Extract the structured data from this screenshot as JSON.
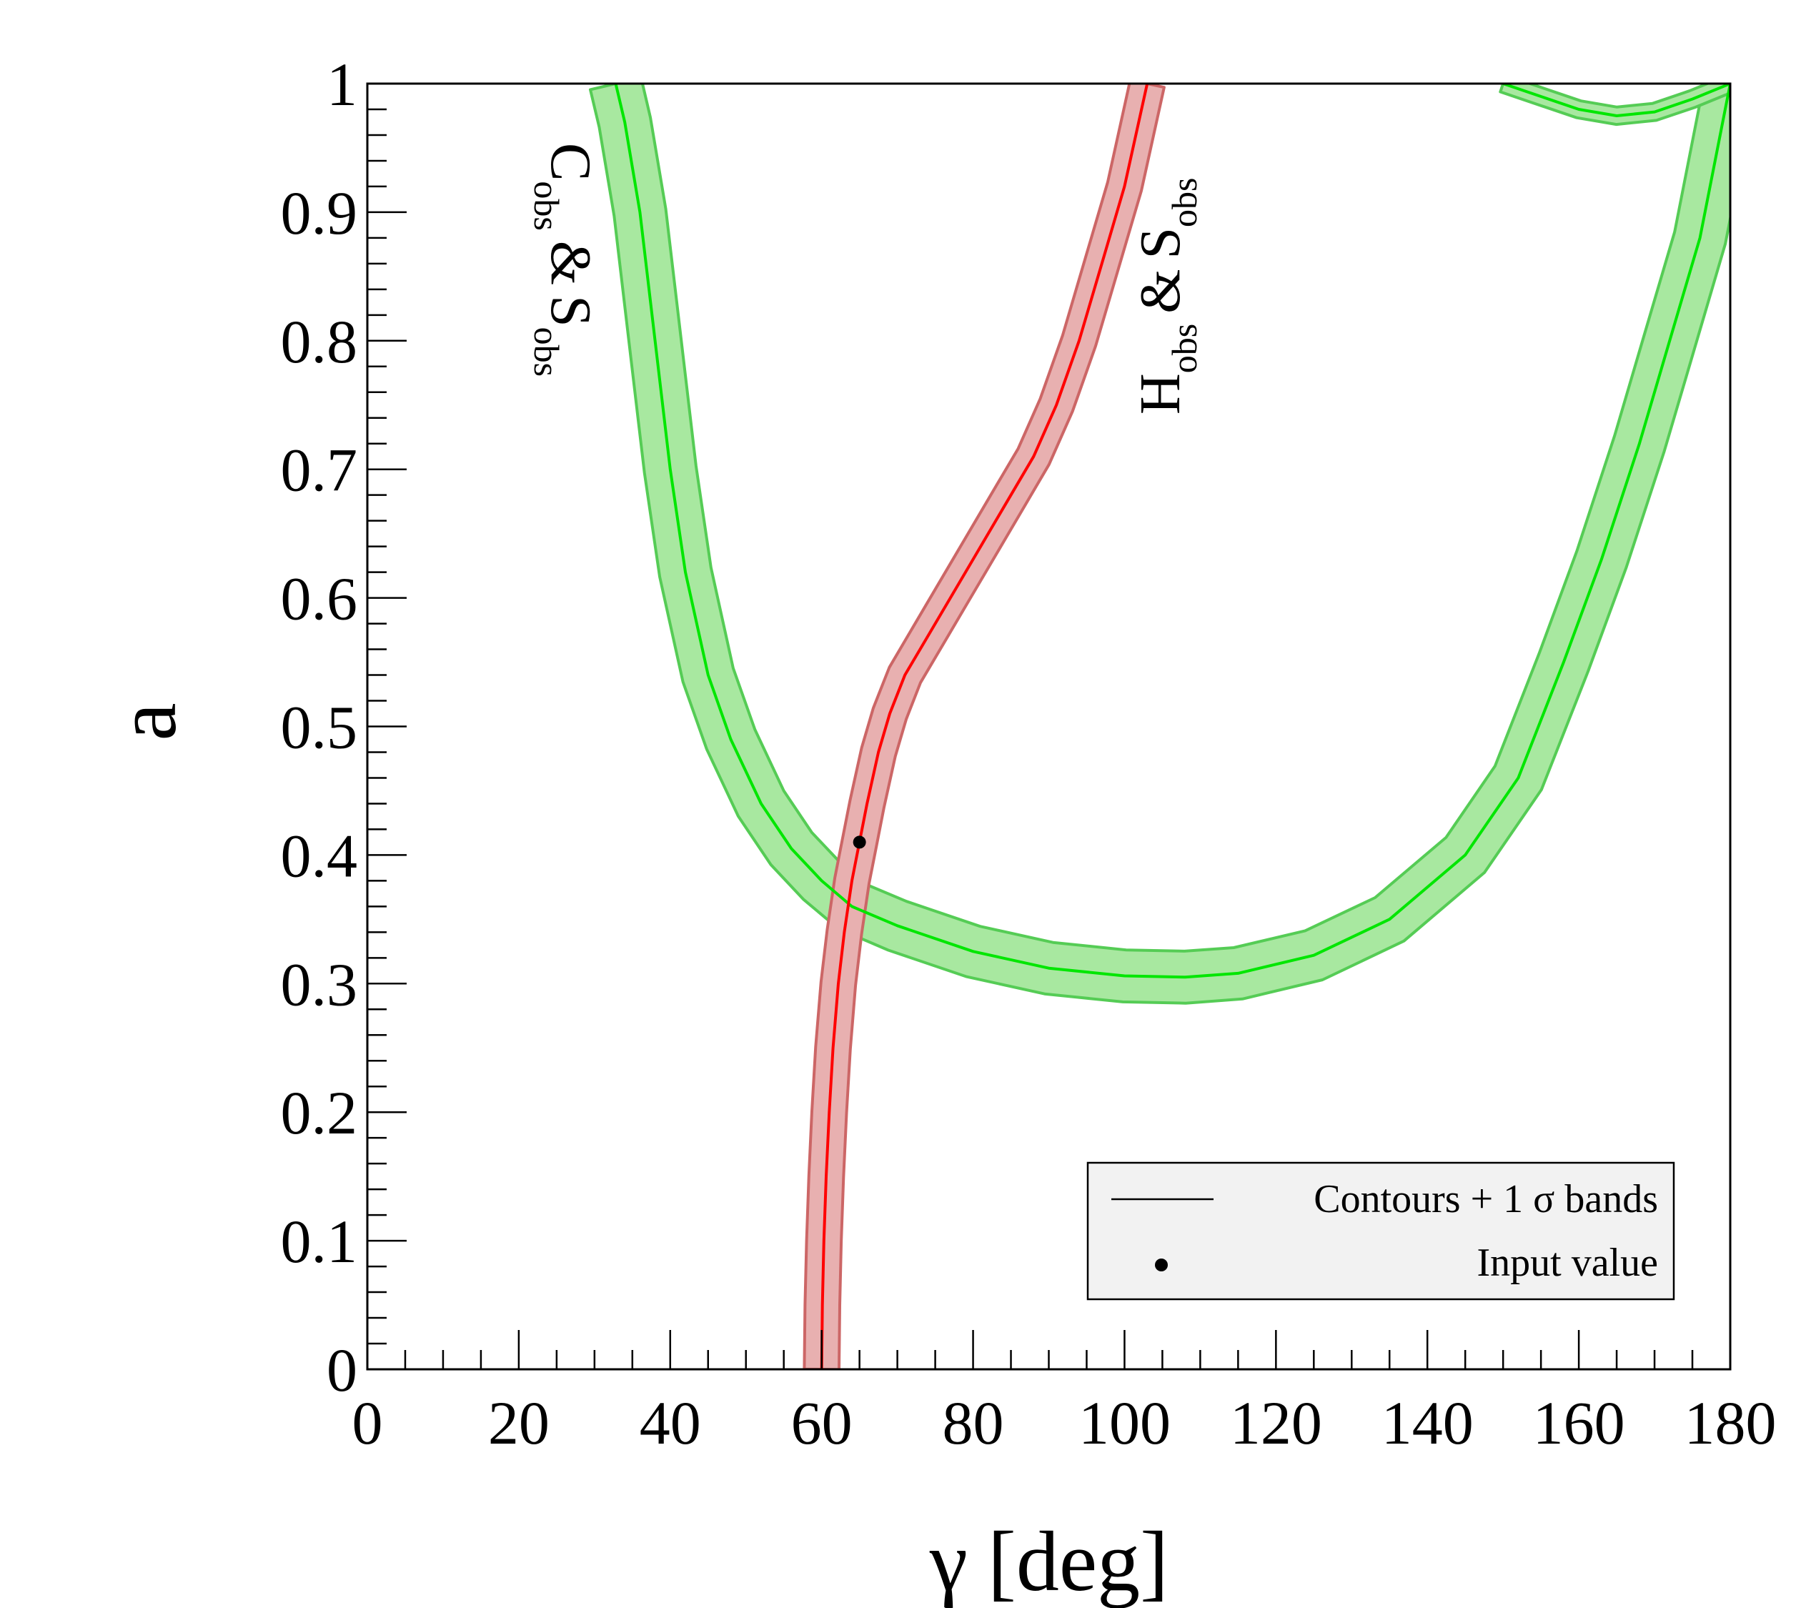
{
  "chart_data": {
    "type": "line",
    "xlabel_symbol": "γ",
    "xlabel_unit": "[deg]",
    "ylabel": "a",
    "xlim": [
      0,
      180
    ],
    "ylim": [
      0,
      1
    ],
    "x_ticks": [
      "0",
      "20",
      "40",
      "60",
      "80",
      "100",
      "120",
      "140",
      "160",
      "180"
    ],
    "y_ticks": [
      "0",
      "0.1",
      "0.2",
      "0.3",
      "0.4",
      "0.5",
      "0.6",
      "0.7",
      "0.8",
      "0.9",
      "1"
    ],
    "series": [
      {
        "name": "C_obs & S_obs",
        "label_main1": "C",
        "label_sub1": "obs",
        "label_amp": "&",
        "label_main2": "S",
        "label_sub2": "obs",
        "line_color": "#00e600",
        "band_fill": "#a8e8a0",
        "band_edge": "#55cc55",
        "band_width": 0.045,
        "center": [
          [
            32.8,
            1.0
          ],
          [
            34,
            0.97
          ],
          [
            36,
            0.9
          ],
          [
            38,
            0.8
          ],
          [
            40,
            0.7
          ],
          [
            42,
            0.62
          ],
          [
            45,
            0.54
          ],
          [
            48,
            0.49
          ],
          [
            52,
            0.44
          ],
          [
            56,
            0.405
          ],
          [
            60,
            0.38
          ],
          [
            64,
            0.36
          ],
          [
            70,
            0.345
          ],
          [
            80,
            0.325
          ],
          [
            90,
            0.312
          ],
          [
            100,
            0.306
          ],
          [
            108,
            0.305
          ],
          [
            115,
            0.308
          ],
          [
            125,
            0.322
          ],
          [
            135,
            0.35
          ],
          [
            145,
            0.4
          ],
          [
            152,
            0.46
          ],
          [
            158,
            0.55
          ],
          [
            163,
            0.63
          ],
          [
            168,
            0.72
          ],
          [
            172,
            0.8
          ],
          [
            176,
            0.88
          ],
          [
            180,
            1.0
          ]
        ]
      },
      {
        "name": "C_obs & S_obs (upper branch)",
        "line_color": "#00e600",
        "band_fill": "#a8e8a0",
        "band_edge": "#55cc55",
        "band_width": 0.015,
        "center": [
          [
            150,
            1.0
          ],
          [
            155,
            0.99
          ],
          [
            160,
            0.98
          ],
          [
            165,
            0.975
          ],
          [
            170,
            0.978
          ],
          [
            175,
            0.988
          ],
          [
            180,
            1.0
          ]
        ]
      },
      {
        "name": "H_obs & S_obs",
        "label_main1": "H",
        "label_sub1": "obs",
        "label_amp": "&",
        "label_main2": "S",
        "label_sub2": "obs",
        "line_color": "#ff0000",
        "band_fill": "#e8b0b0",
        "band_edge": "#cc6666",
        "band_width": 0.03,
        "center": [
          [
            60,
            0.0
          ],
          [
            60.1,
            0.05
          ],
          [
            60.3,
            0.1
          ],
          [
            60.6,
            0.15
          ],
          [
            61,
            0.2
          ],
          [
            61.5,
            0.25
          ],
          [
            62.2,
            0.3
          ],
          [
            63,
            0.34
          ],
          [
            64,
            0.38
          ],
          [
            65,
            0.41
          ],
          [
            66,
            0.44
          ],
          [
            67.5,
            0.48
          ],
          [
            69,
            0.51
          ],
          [
            71,
            0.54
          ],
          [
            74,
            0.57
          ],
          [
            77,
            0.6
          ],
          [
            80,
            0.63
          ],
          [
            84,
            0.67
          ],
          [
            88,
            0.71
          ],
          [
            91,
            0.75
          ],
          [
            94,
            0.8
          ],
          [
            97,
            0.86
          ],
          [
            100,
            0.92
          ],
          [
            103,
            1.0
          ]
        ]
      }
    ],
    "input_point": {
      "x": 65,
      "y": 0.41
    },
    "legend": {
      "position": "bottom-right",
      "entries": [
        {
          "label": "Contours + 1 σ bands",
          "marker": "line"
        },
        {
          "label": "Input value",
          "marker": "dot"
        }
      ]
    }
  }
}
